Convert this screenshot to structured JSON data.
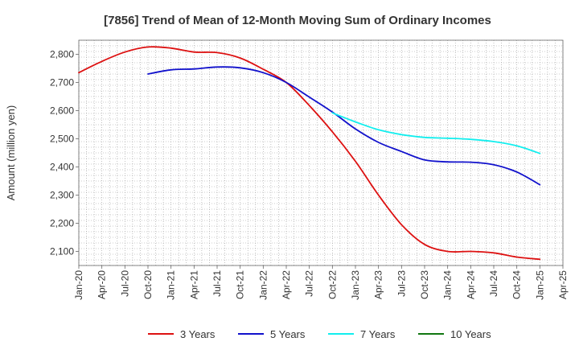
{
  "chart_data": {
    "type": "line",
    "title": "[7856]  Trend of Mean of 12-Month Moving Sum of Ordinary Incomes",
    "xlabel": "",
    "ylabel": "Amount (million yen)",
    "ylim": [
      2050,
      2850
    ],
    "yticks": [
      2100,
      2200,
      2300,
      2400,
      2500,
      2600,
      2700,
      2800
    ],
    "ytick_labels": [
      "2,100",
      "2,200",
      "2,300",
      "2,400",
      "2,500",
      "2,600",
      "2,700",
      "2,800"
    ],
    "x_range": [
      "Jan-20",
      "Apr-25"
    ],
    "xtick_labels": [
      "Jan-20",
      "Apr-20",
      "Jul-20",
      "Oct-20",
      "Jan-21",
      "Apr-21",
      "Jul-21",
      "Oct-21",
      "Jan-22",
      "Apr-22",
      "Jul-22",
      "Oct-22",
      "Jan-23",
      "Apr-23",
      "Jul-23",
      "Oct-23",
      "Jan-24",
      "Apr-24",
      "Jul-24",
      "Oct-24",
      "Jan-25",
      "Apr-25"
    ],
    "grid": true,
    "legend_position": "bottom",
    "series": [
      {
        "name": "3 Years",
        "color": "#dd1111",
        "points": [
          [
            "Jan-20",
            2735
          ],
          [
            "Apr-20",
            2775
          ],
          [
            "Jul-20",
            2808
          ],
          [
            "Oct-20",
            2826
          ],
          [
            "Jan-21",
            2822
          ],
          [
            "Apr-21",
            2808
          ],
          [
            "Jul-21",
            2806
          ],
          [
            "Oct-21",
            2787
          ],
          [
            "Jan-22",
            2747
          ],
          [
            "Apr-22",
            2700
          ],
          [
            "Jul-22",
            2618
          ],
          [
            "Oct-22",
            2525
          ],
          [
            "Jan-23",
            2420
          ],
          [
            "Apr-23",
            2300
          ],
          [
            "Jul-23",
            2195
          ],
          [
            "Oct-23",
            2125
          ],
          [
            "Jan-24",
            2100
          ],
          [
            "Apr-24",
            2100
          ],
          [
            "Jul-24",
            2095
          ],
          [
            "Oct-24",
            2080
          ],
          [
            "Jan-25",
            2072
          ]
        ]
      },
      {
        "name": "5 Years",
        "color": "#1111cc",
        "points": [
          [
            "Oct-20",
            2730
          ],
          [
            "Jan-21",
            2745
          ],
          [
            "Apr-21",
            2748
          ],
          [
            "Jul-21",
            2755
          ],
          [
            "Oct-21",
            2752
          ],
          [
            "Jan-22",
            2735
          ],
          [
            "Apr-22",
            2700
          ],
          [
            "Jul-22",
            2648
          ],
          [
            "Oct-22",
            2595
          ],
          [
            "Jan-23",
            2535
          ],
          [
            "Apr-23",
            2487
          ],
          [
            "Jul-23",
            2455
          ],
          [
            "Oct-23",
            2425
          ],
          [
            "Jan-24",
            2418
          ],
          [
            "Apr-24",
            2417
          ],
          [
            "Jul-24",
            2408
          ],
          [
            "Oct-24",
            2382
          ],
          [
            "Jan-25",
            2337
          ]
        ]
      },
      {
        "name": "7 Years",
        "color": "#11eeee",
        "points": [
          [
            "Oct-22",
            2592
          ],
          [
            "Jan-23",
            2560
          ],
          [
            "Apr-23",
            2532
          ],
          [
            "Jul-23",
            2515
          ],
          [
            "Oct-23",
            2505
          ],
          [
            "Jan-24",
            2502
          ],
          [
            "Apr-24",
            2498
          ],
          [
            "Jul-24",
            2490
          ],
          [
            "Oct-24",
            2475
          ],
          [
            "Jan-25",
            2448
          ]
        ]
      },
      {
        "name": "10 Years",
        "color": "#117711",
        "points": []
      }
    ]
  }
}
